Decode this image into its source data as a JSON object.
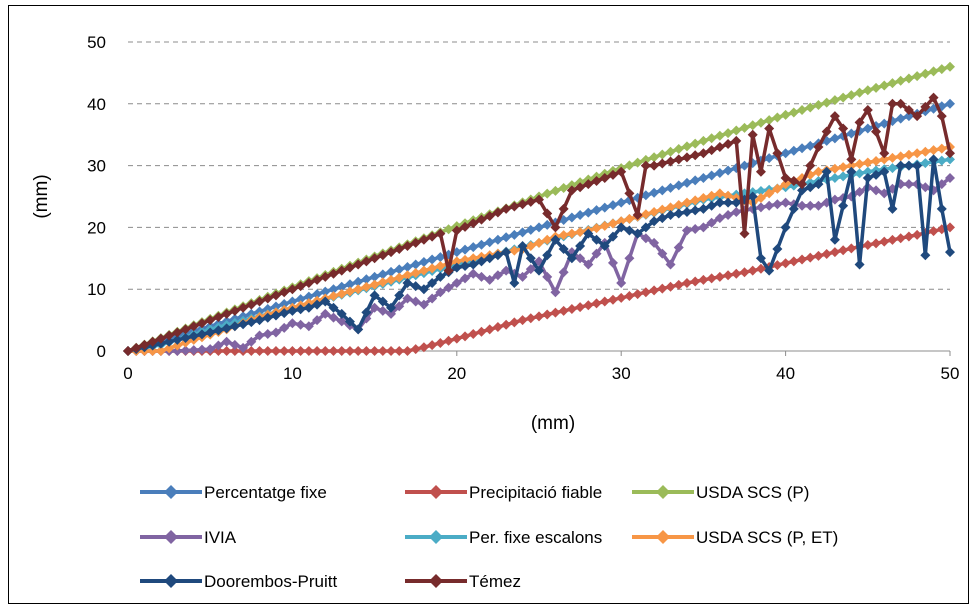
{
  "chart_data": {
    "type": "line",
    "title": "",
    "xlabel": "(mm)",
    "ylabel": "(mm)",
    "xlim": [
      0,
      50
    ],
    "ylim": [
      0,
      50
    ],
    "x_ticks": [
      0,
      10,
      20,
      30,
      40,
      50
    ],
    "y_ticks": [
      0,
      10,
      20,
      30,
      40,
      50
    ],
    "grid": "horizontal dashed",
    "legend_position": "bottom",
    "series": [
      {
        "name": "Percentatge fixe",
        "color": "#4a7ebb",
        "x": [
          0,
          10,
          20,
          30,
          40,
          50
        ],
        "y": [
          0,
          8,
          16,
          24,
          32,
          40
        ]
      },
      {
        "name": "Precipitació fiable",
        "color": "#c0504d",
        "x": [
          0,
          2,
          4,
          6,
          8,
          10,
          12,
          14,
          16,
          17,
          18,
          20,
          22,
          24,
          26,
          28,
          30,
          32,
          34,
          36,
          38,
          40,
          42,
          44,
          46,
          48,
          50
        ],
        "y": [
          0,
          0,
          0,
          0,
          0,
          0,
          0,
          0,
          0,
          0,
          0.6,
          2,
          3.5,
          5,
          6.2,
          7.4,
          8.6,
          9.8,
          11,
          12,
          13,
          14.2,
          15.4,
          16.6,
          17.7,
          18.8,
          20
        ]
      },
      {
        "name": "USDA SCS (P)",
        "color": "#9bbb59",
        "x": [
          0,
          5,
          10,
          15,
          20,
          25,
          30,
          35,
          40,
          45,
          50
        ],
        "y": [
          0,
          5.2,
          10.3,
          15.3,
          20.2,
          25,
          29.6,
          34,
          38.2,
          42.2,
          46
        ]
      },
      {
        "name": "IVIA",
        "color": "#8064a2",
        "x": [
          0,
          3,
          5,
          6,
          7,
          8,
          9,
          10,
          11,
          12,
          13,
          14,
          15,
          16,
          17,
          18,
          19,
          20,
          21,
          22,
          23,
          24,
          25,
          26,
          27,
          28,
          29,
          30,
          31,
          32,
          33,
          34,
          35,
          36,
          37,
          38,
          39,
          40,
          41,
          42,
          43,
          44,
          45,
          46,
          47,
          48,
          49,
          50
        ],
        "y": [
          0,
          0,
          0.3,
          1.5,
          0.5,
          2.5,
          3,
          4.5,
          4,
          6,
          4.8,
          3.5,
          7,
          6,
          8.5,
          7.5,
          9.5,
          11,
          12.5,
          11.5,
          13,
          12,
          14.5,
          9.5,
          16,
          14,
          17.5,
          11,
          19,
          17.5,
          14,
          19.5,
          20,
          21.5,
          22.5,
          23,
          23.5,
          24,
          23.5,
          23.5,
          24.5,
          25,
          26.5,
          25.5,
          27,
          27,
          26,
          28
        ]
      },
      {
        "name": "Per. fixe escalons",
        "color": "#4bacc6",
        "x": [
          0,
          2,
          5,
          10,
          15,
          20,
          25,
          30,
          35,
          40,
          45,
          50
        ],
        "y": [
          0,
          1,
          3.5,
          7,
          10.5,
          14,
          17.5,
          21,
          24.5,
          26.5,
          29,
          31
        ]
      },
      {
        "name": "USDA SCS (P, ET)",
        "color": "#f79646",
        "x": [
          0,
          2,
          4,
          6,
          8,
          10,
          12,
          14,
          16,
          18,
          20,
          22,
          24,
          26,
          28,
          30,
          32,
          34,
          36,
          38,
          40,
          42,
          44,
          46,
          48,
          50
        ],
        "y": [
          0,
          0,
          1.8,
          3.5,
          5.5,
          7,
          8.5,
          10,
          11.5,
          13,
          14.5,
          15.5,
          16.5,
          18.5,
          19.5,
          21,
          22.5,
          24,
          25.5,
          24,
          27,
          29,
          30,
          31,
          32,
          33
        ]
      },
      {
        "name": "Doorembos-Pruitt",
        "color": "#1f497d",
        "x": [
          0,
          5,
          8,
          10,
          11,
          12,
          13,
          14,
          15,
          16,
          17,
          18,
          19,
          20,
          21,
          22,
          23,
          23.5,
          24,
          25,
          26,
          27,
          28,
          29,
          30,
          31,
          32,
          33,
          34,
          35,
          36,
          37,
          38,
          38.5,
          39,
          40,
          41,
          42,
          42.5,
          43,
          44,
          44.5,
          45,
          46,
          46.5,
          47,
          48,
          48.5,
          49,
          49.5,
          50
        ],
        "y": [
          0,
          3,
          5,
          6.5,
          7,
          8,
          6,
          3.5,
          9,
          7,
          11,
          10,
          12,
          13.5,
          14,
          15,
          16,
          11,
          17,
          13,
          18,
          15,
          19,
          17,
          20,
          19,
          21,
          22,
          22.5,
          23,
          24,
          24,
          25,
          15,
          13,
          20,
          26,
          27,
          29,
          18,
          29,
          14,
          28,
          29,
          23,
          30,
          30,
          15.5,
          31,
          23,
          16
        ]
      },
      {
        "name": "Témez",
        "color": "#772b2c",
        "x": [
          0,
          5,
          10,
          15,
          19,
          19.5,
          20,
          23,
          25,
          26,
          27,
          28,
          30,
          31,
          31.5,
          32,
          35,
          36,
          37,
          37.5,
          38,
          38.5,
          39,
          40,
          41,
          42,
          43,
          43.5,
          44,
          44.5,
          45,
          46,
          46.5,
          47,
          48,
          49,
          49.5,
          50
        ],
        "y": [
          0,
          5,
          10,
          15,
          19,
          13,
          19.5,
          23,
          24.5,
          20,
          26,
          27,
          29,
          22,
          30,
          30,
          32,
          33,
          34,
          19,
          35,
          29,
          36,
          28,
          27,
          33,
          38,
          36,
          31,
          37,
          39,
          32,
          40,
          40,
          38,
          41,
          38,
          32
        ]
      }
    ]
  }
}
